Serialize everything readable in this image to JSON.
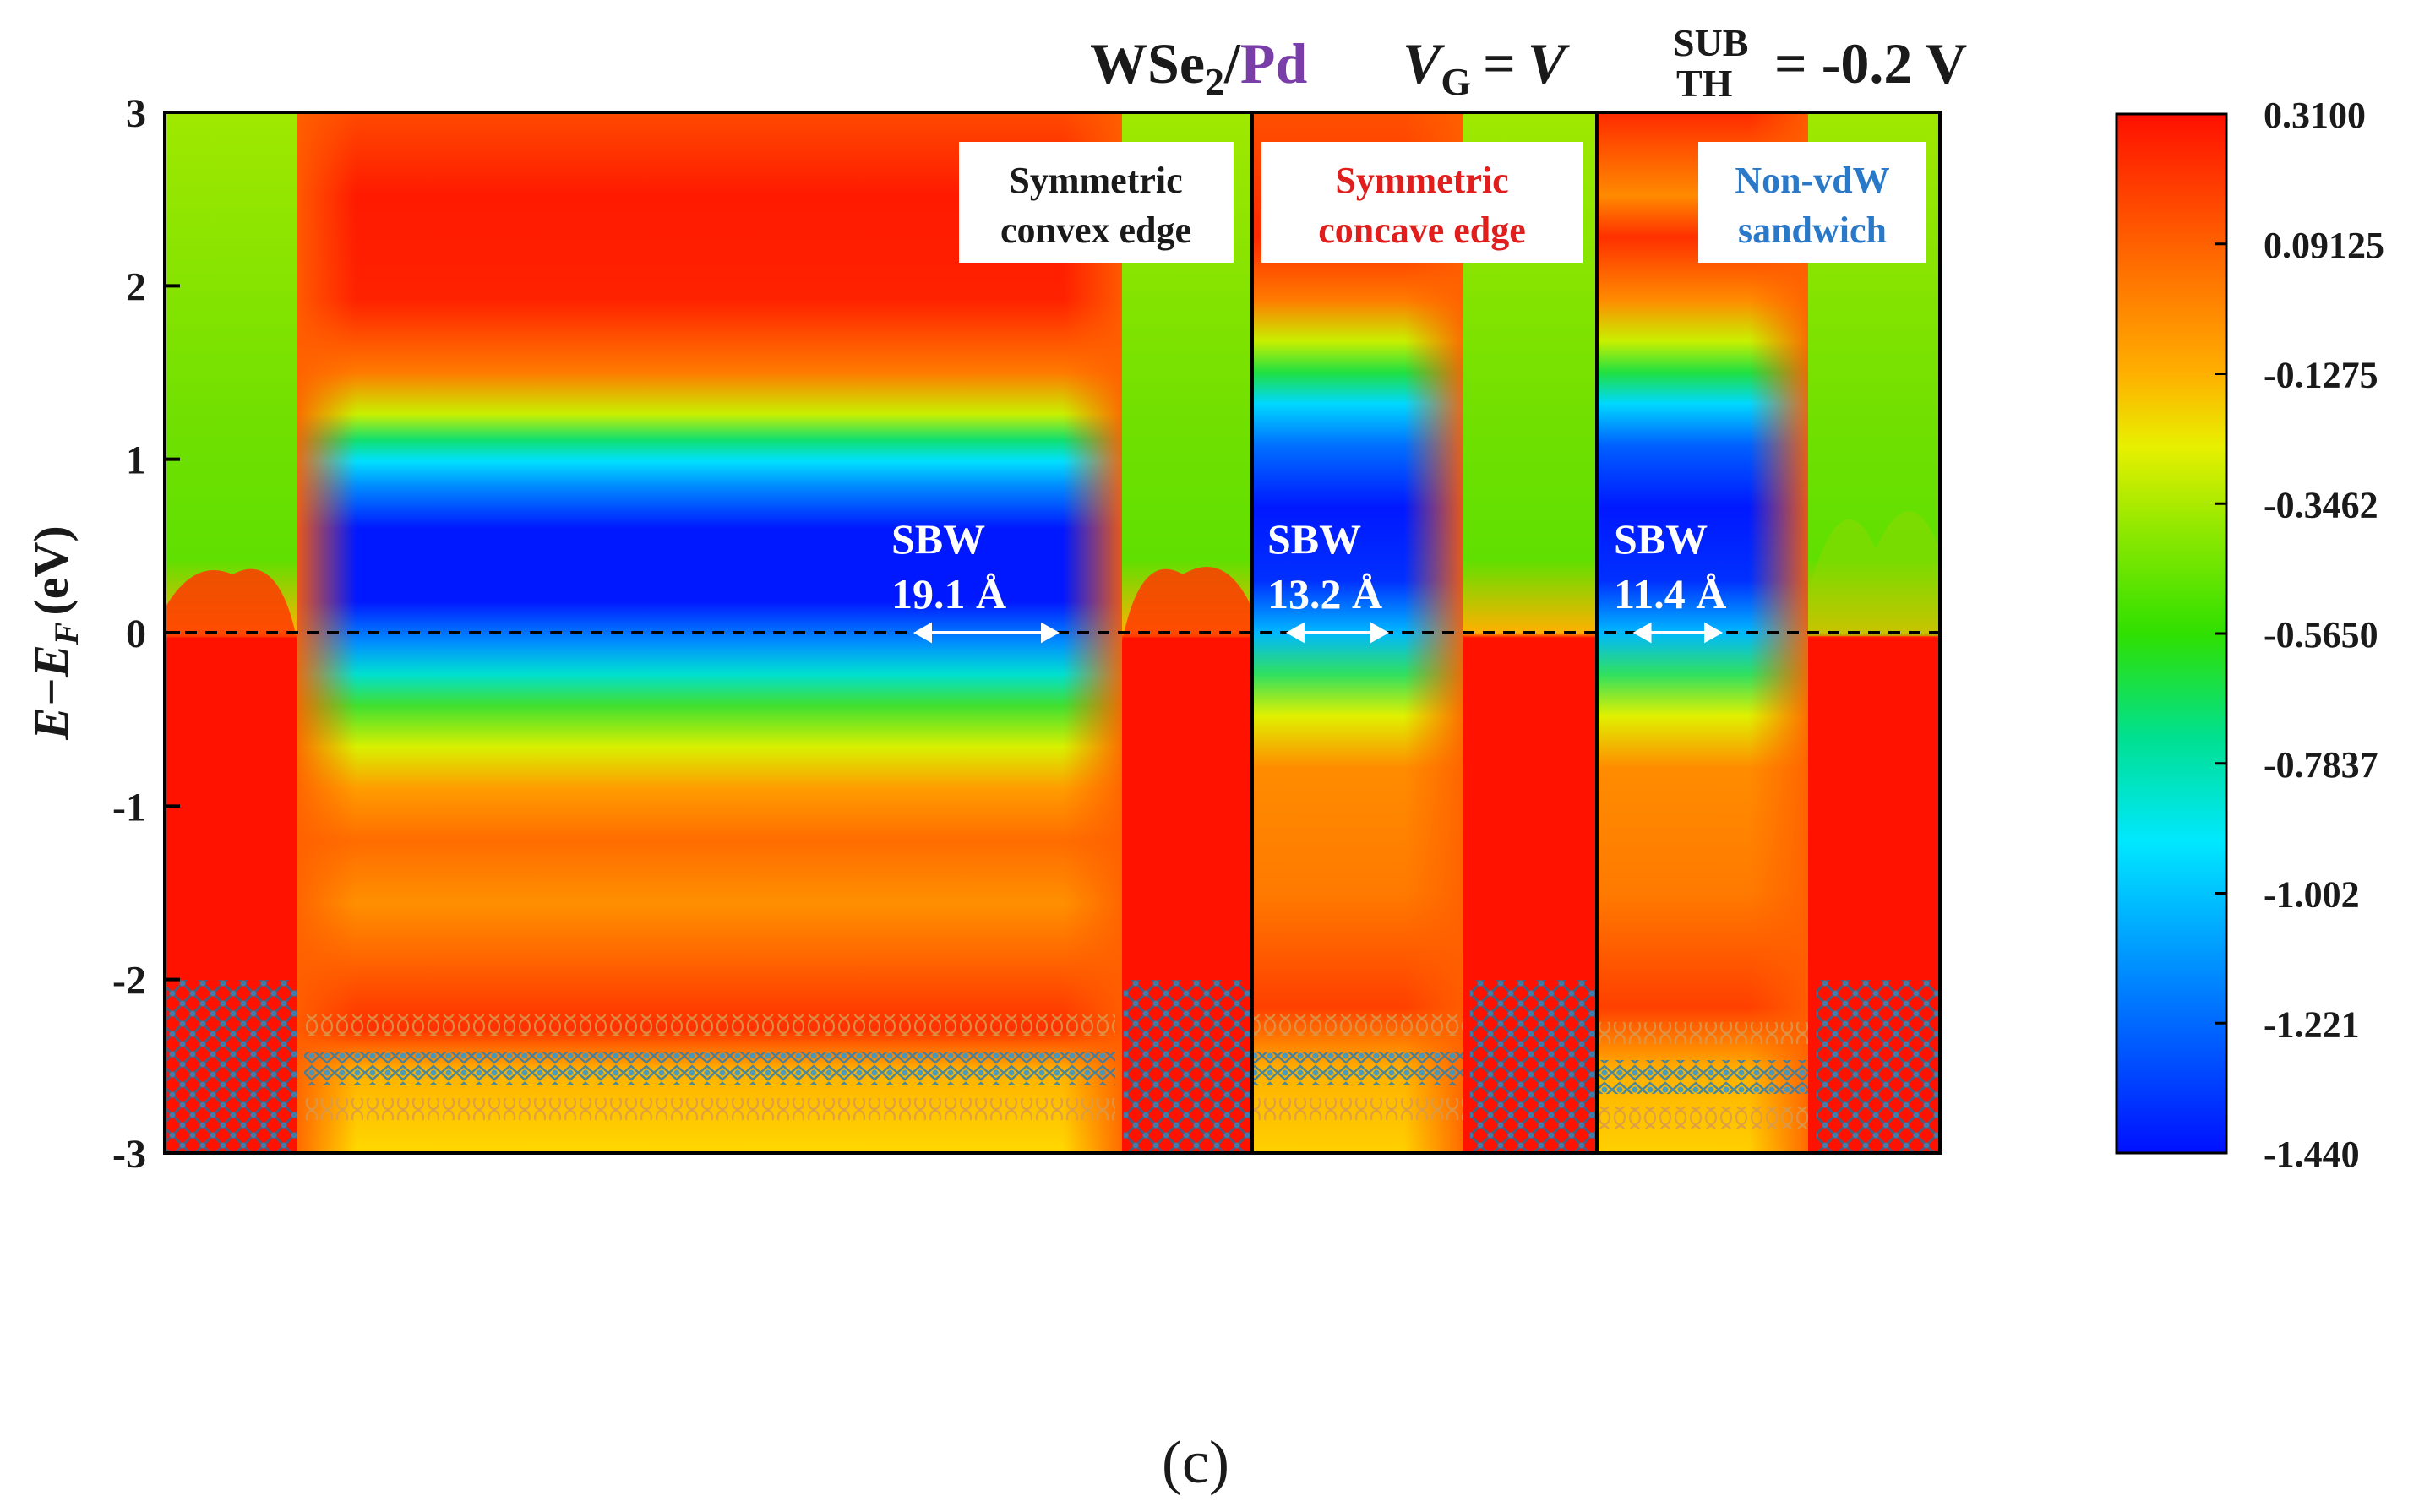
{
  "chart_data": {
    "type": "heatmap",
    "title_material": "WSe",
    "title_material_sub": "2",
    "title_slash": "/",
    "title_metal": "Pd",
    "title_gate_var": "V",
    "title_gate_sub": "G",
    "title_eq1": "=",
    "title_vth_var": "V",
    "title_vth_sup": "SUB",
    "title_vth_sub": "TH",
    "title_eq2": "= -0.2 V",
    "ylabel": "E−E",
    "ylabel_sub": "F",
    "ylabel_unit": "(eV)",
    "ylim": [
      -3,
      3
    ],
    "yticks": [
      "3",
      "2",
      "1",
      "0",
      "-1",
      "-2",
      "-3"
    ],
    "ytick_values": [
      3,
      2,
      1,
      0,
      -1,
      -2,
      -3
    ],
    "fermi_level": 0,
    "colorbar": {
      "min": -1.44,
      "max": 0.31,
      "ticks": [
        "0.3100",
        "0.09125",
        "-0.1275",
        "-0.3462",
        "-0.5650",
        "-0.7837",
        "-1.002",
        "-1.221",
        "-1.440"
      ],
      "colors": [
        "#0010ff",
        "#0090ff",
        "#00e8ff",
        "#00e070",
        "#40e000",
        "#d8f000",
        "#ffb000",
        "#ff6000",
        "#ff1000"
      ]
    },
    "panels": [
      {
        "label_line1": "Symmetric",
        "label_line2": "convex edge",
        "label_color": "#1a1a1a",
        "sbw_label": "SBW",
        "sbw_value": "19.1 Å",
        "sbw_angstrom": 19.1
      },
      {
        "label_line1": "Symmetric",
        "label_line2": "concave edge",
        "label_color": "#e01e1e",
        "sbw_label": "SBW",
        "sbw_value": "13.2 Å",
        "sbw_angstrom": 13.2
      },
      {
        "label_line1": "Non-vdW",
        "label_line2": "sandwich",
        "label_color": "#2a78c8",
        "sbw_label": "SBW",
        "sbw_value": "11.4 Å",
        "sbw_angstrom": 11.4
      }
    ]
  },
  "caption": "(c)"
}
